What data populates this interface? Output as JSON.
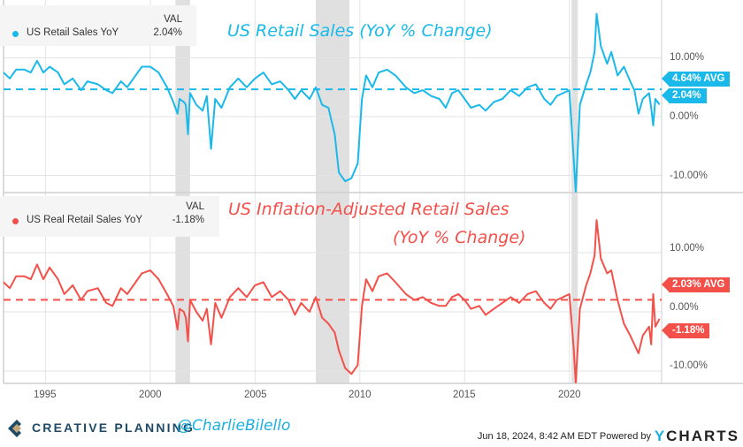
{
  "colors": {
    "retail": "#1ab9ea",
    "real": "#f4504a",
    "recession": "#e0e0e0",
    "grid": "#e3e3e3",
    "brand": "#1e4a66",
    "brand_gold": "#c4a57a"
  },
  "legend_header": "VAL",
  "footer": {
    "brand": "CREATIVE PLANNING",
    "handle": "@CharlieBilello",
    "timestamp": "Jun 18, 2024, 8:42 AM EDT Powered by",
    "ycharts_y": "Y",
    "ycharts_rest": "CHARTS"
  },
  "chart_data": [
    {
      "type": "line",
      "title": "US Retail Sales (YoY % Change)",
      "series": [
        {
          "name": "US Retail Sales YoY",
          "last_value_label": "2.04%",
          "last_value": 2.04,
          "avg_value": 4.64,
          "avg_label": "4.64% AVG",
          "x": [
            1993.0,
            1993.3,
            1993.6,
            1994.0,
            1994.3,
            1994.6,
            1994.9,
            1995.2,
            1995.6,
            1995.9,
            1996.3,
            1996.7,
            1997.0,
            1997.5,
            1997.9,
            1998.2,
            1998.6,
            1998.9,
            1999.3,
            1999.6,
            2000.0,
            2000.4,
            2000.8,
            2001.1,
            2001.3,
            2001.4,
            2001.6,
            2001.7,
            2001.8,
            2001.9,
            2002.2,
            2002.5,
            2002.7,
            2002.9,
            2003.1,
            2003.4,
            2003.8,
            2004.2,
            2004.6,
            2005.0,
            2005.4,
            2005.8,
            2006.2,
            2006.6,
            2006.9,
            2007.2,
            2007.6,
            2007.9,
            2008.2,
            2008.5,
            2008.8,
            2009.0,
            2009.3,
            2009.6,
            2009.9,
            2010.1,
            2010.3,
            2010.6,
            2010.9,
            2011.3,
            2011.7,
            2012.2,
            2012.6,
            2013.0,
            2013.4,
            2013.8,
            2014.1,
            2014.4,
            2014.7,
            2015.0,
            2015.3,
            2015.7,
            2016.0,
            2016.4,
            2016.8,
            2017.2,
            2017.6,
            2018.0,
            2018.4,
            2018.8,
            2019.1,
            2019.4,
            2019.7,
            2020.0,
            2020.2,
            2020.3,
            2020.5,
            2020.8,
            2021.0,
            2021.2,
            2021.3,
            2021.5,
            2021.8,
            2022.0,
            2022.3,
            2022.6,
            2022.9,
            2023.1,
            2023.3,
            2023.5,
            2023.8,
            2023.9,
            2024.0,
            2024.1,
            2024.3
          ],
          "values": [
            7.5,
            6.5,
            8.0,
            8.0,
            7.5,
            9.5,
            7.5,
            8.5,
            7.5,
            5.5,
            6.5,
            4.5,
            6.0,
            5.5,
            4.5,
            4.0,
            6.0,
            5.0,
            7.0,
            8.5,
            8.5,
            7.5,
            5.0,
            2.5,
            0.5,
            3.0,
            2.5,
            2.0,
            -3.0,
            4.0,
            2.0,
            1.0,
            3.5,
            -5.5,
            3.0,
            1.5,
            5.0,
            6.5,
            5.0,
            6.5,
            7.5,
            5.5,
            6.0,
            4.5,
            3.0,
            4.5,
            3.0,
            5.0,
            2.0,
            1.5,
            -3.0,
            -9.5,
            -11.0,
            -10.5,
            -8.0,
            3.0,
            7.0,
            5.0,
            7.5,
            8.0,
            7.0,
            5.0,
            4.0,
            4.5,
            3.5,
            3.0,
            1.5,
            4.0,
            4.5,
            3.0,
            1.5,
            2.0,
            1.0,
            2.5,
            3.0,
            4.5,
            3.5,
            5.0,
            5.5,
            3.0,
            2.0,
            3.5,
            4.0,
            4.5,
            -7.0,
            -16.0,
            2.0,
            5.5,
            7.5,
            11.0,
            17.5,
            12.0,
            9.0,
            11.0,
            7.0,
            8.5,
            6.0,
            4.5,
            0.5,
            3.0,
            4.0,
            1.5,
            -1.5,
            3.0,
            2.04
          ]
        }
      ],
      "yticks": [
        "10.00%",
        "0.00%",
        "-10.00%"
      ],
      "ytick_values": [
        10,
        0,
        -10
      ],
      "ylim": [
        -12,
        20
      ]
    },
    {
      "type": "line",
      "title_line1": "US Inflation-Adjusted Retail Sales",
      "title_line2": "(YoY % Change)",
      "series": [
        {
          "name": "US Real Retail Sales YoY",
          "last_value_label": "-1.18%",
          "last_value": -1.18,
          "avg_value": 2.03,
          "avg_label": "2.03% AVG",
          "x": [
            1993.0,
            1993.3,
            1993.6,
            1994.0,
            1994.3,
            1994.6,
            1994.9,
            1995.2,
            1995.6,
            1995.9,
            1996.3,
            1996.7,
            1997.0,
            1997.5,
            1997.9,
            1998.2,
            1998.6,
            1998.9,
            1999.3,
            1999.6,
            2000.0,
            2000.4,
            2000.8,
            2001.1,
            2001.3,
            2001.4,
            2001.6,
            2001.7,
            2001.8,
            2001.9,
            2002.2,
            2002.5,
            2002.7,
            2002.9,
            2003.1,
            2003.4,
            2003.8,
            2004.2,
            2004.6,
            2005.0,
            2005.4,
            2005.8,
            2006.2,
            2006.6,
            2006.9,
            2007.2,
            2007.6,
            2007.9,
            2008.2,
            2008.5,
            2008.8,
            2009.0,
            2009.3,
            2009.6,
            2009.9,
            2010.1,
            2010.3,
            2010.6,
            2010.9,
            2011.3,
            2011.7,
            2012.2,
            2012.6,
            2013.0,
            2013.4,
            2013.8,
            2014.1,
            2014.4,
            2014.7,
            2015.0,
            2015.3,
            2015.7,
            2016.0,
            2016.4,
            2016.8,
            2017.2,
            2017.6,
            2018.0,
            2018.4,
            2018.8,
            2019.1,
            2019.4,
            2019.7,
            2020.0,
            2020.2,
            2020.3,
            2020.5,
            2020.8,
            2021.0,
            2021.2,
            2021.3,
            2021.5,
            2021.8,
            2022.0,
            2022.3,
            2022.6,
            2022.9,
            2023.1,
            2023.3,
            2023.5,
            2023.8,
            2023.9,
            2024.0,
            2024.1,
            2024.3
          ],
          "values": [
            5.0,
            4.0,
            6.0,
            6.0,
            5.5,
            8.0,
            5.5,
            7.5,
            5.5,
            3.0,
            4.5,
            2.0,
            3.5,
            4.0,
            1.5,
            1.0,
            4.0,
            3.0,
            5.0,
            6.5,
            7.0,
            5.5,
            3.0,
            1.0,
            -3.0,
            0.5,
            0.0,
            -1.0,
            -5.0,
            2.0,
            0.0,
            -1.5,
            0.5,
            -5.5,
            1.5,
            -1.0,
            2.5,
            4.0,
            2.5,
            4.5,
            5.0,
            2.5,
            3.5,
            2.0,
            -0.5,
            1.5,
            0.0,
            2.5,
            -1.0,
            -2.0,
            -3.5,
            -6.5,
            -9.5,
            -10.5,
            -9.0,
            1.0,
            5.5,
            3.5,
            6.0,
            6.5,
            5.0,
            3.0,
            2.0,
            2.5,
            1.5,
            1.0,
            1.0,
            2.5,
            3.0,
            2.0,
            0.5,
            1.0,
            -0.5,
            0.5,
            1.5,
            2.5,
            1.5,
            3.0,
            3.5,
            1.5,
            0.5,
            2.0,
            2.5,
            3.0,
            -6.0,
            -14.0,
            0.5,
            4.5,
            6.5,
            9.5,
            15.5,
            9.0,
            6.5,
            7.0,
            2.0,
            -2.0,
            -4.0,
            -5.5,
            -7.0,
            -4.0,
            -2.5,
            -5.5,
            3.0,
            -2.5,
            -1.18
          ]
        }
      ],
      "yticks": [
        "10.00%",
        "0.00%",
        "-10.00%"
      ],
      "ytick_values": [
        10,
        0,
        -10
      ],
      "ylim": [
        -12,
        18
      ]
    }
  ],
  "xaxis": {
    "ticks": [
      "1995",
      "2000",
      "2005",
      "2010",
      "2015",
      "2020"
    ],
    "tick_values": [
      1995,
      2000,
      2005,
      2010,
      2015,
      2020
    ],
    "range": [
      1993.0,
      2024.4
    ]
  },
  "recessions": [
    [
      2001.2,
      2001.9
    ],
    [
      2007.9,
      2009.5
    ],
    [
      2020.1,
      2020.4
    ]
  ]
}
